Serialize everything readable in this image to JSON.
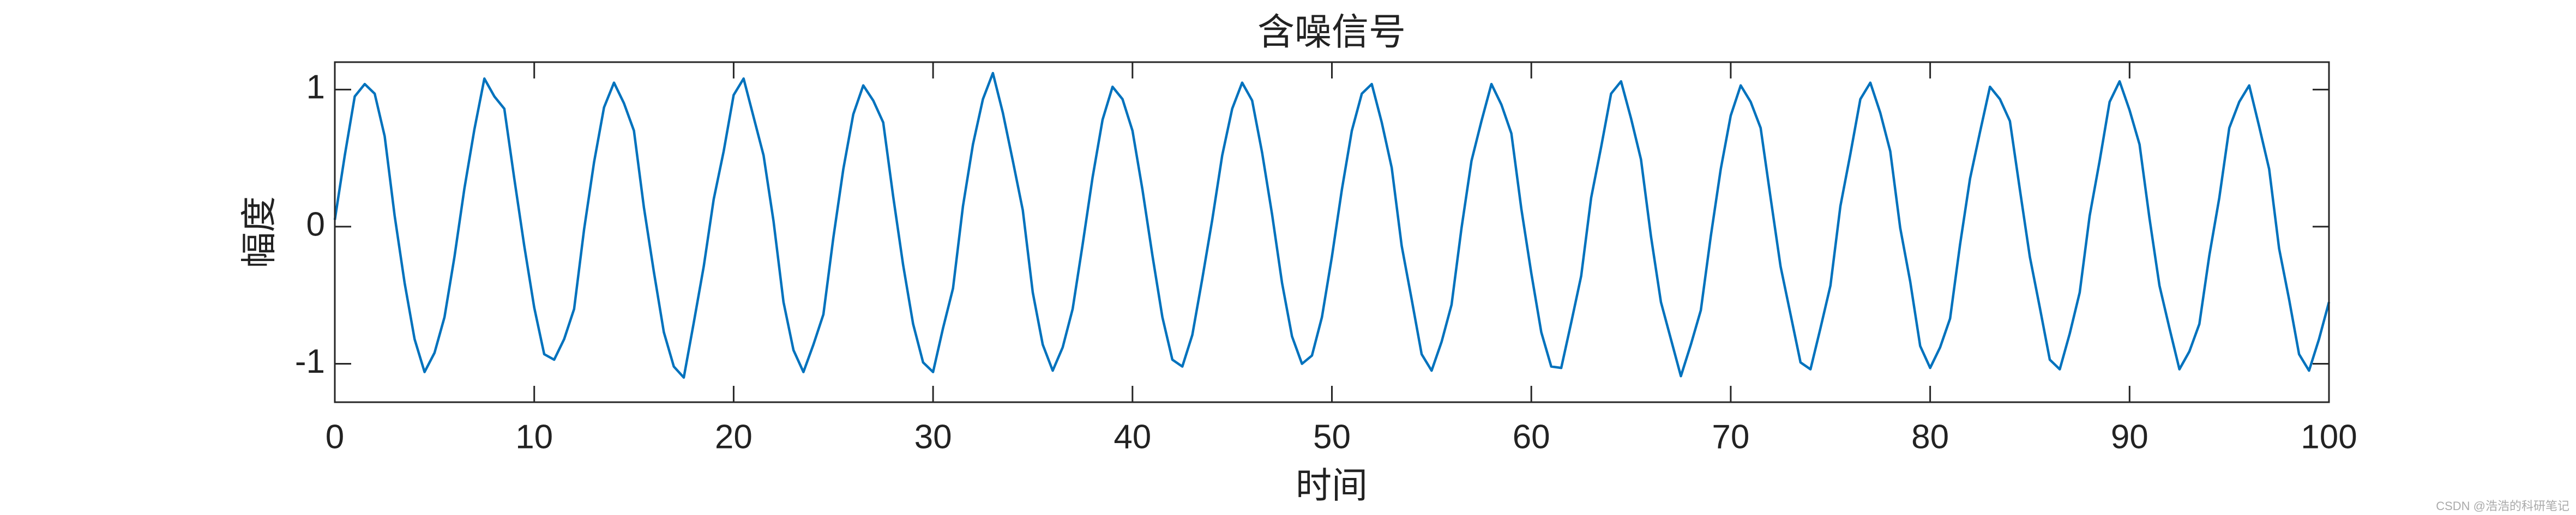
{
  "chart_data": {
    "type": "line",
    "title": "含噪信号",
    "xlabel": "时间",
    "ylabel": "幅度",
    "watermark": "CSDN @浩浩的科研笔记",
    "xlim": [
      0,
      100
    ],
    "ylim": [
      -1.28,
      1.2
    ],
    "xticks": [
      0,
      10,
      20,
      30,
      40,
      50,
      60,
      70,
      80,
      90,
      100
    ],
    "yticks": [
      -1,
      0,
      1
    ],
    "grid": false,
    "box": true,
    "x": [
      0,
      0.5,
      1,
      1.5,
      2,
      2.5,
      3,
      3.5,
      4,
      4.5,
      5,
      5.5,
      6,
      6.5,
      7,
      7.5,
      8,
      8.5,
      9,
      9.5,
      10,
      10.5,
      11,
      11.5,
      12,
      12.5,
      13,
      13.5,
      14,
      14.5,
      15,
      15.5,
      16,
      16.5,
      17,
      17.5,
      18,
      18.5,
      19,
      19.5,
      20,
      20.5,
      21,
      21.5,
      22,
      22.5,
      23,
      23.5,
      24,
      24.5,
      25,
      25.5,
      26,
      26.5,
      27,
      27.5,
      28,
      28.5,
      29,
      29.5,
      30,
      30.5,
      31,
      31.5,
      32,
      32.5,
      33,
      33.5,
      34,
      34.5,
      35,
      35.5,
      36,
      36.5,
      37,
      37.5,
      38,
      38.5,
      39,
      39.5,
      40,
      40.5,
      41,
      41.5,
      42,
      42.5,
      43,
      43.5,
      44,
      44.5,
      45,
      45.5,
      46,
      46.5,
      47,
      47.5,
      48,
      48.5,
      49,
      49.5,
      50,
      50.5,
      51,
      51.5,
      52,
      52.5,
      53,
      53.5,
      54,
      54.5,
      55,
      55.5,
      56,
      56.5,
      57,
      57.5,
      58,
      58.5,
      59,
      59.5,
      60,
      60.5,
      61,
      61.5,
      62,
      62.5,
      63,
      63.5,
      64,
      64.5,
      65,
      65.5,
      66,
      66.5,
      67,
      67.5,
      68,
      68.5,
      69,
      69.5,
      70,
      70.5,
      71,
      71.5,
      72,
      72.5,
      73,
      73.5,
      74,
      74.5,
      75,
      75.5,
      76,
      76.5,
      77,
      77.5,
      78,
      78.5,
      79,
      79.5,
      80,
      80.5,
      81,
      81.5,
      82,
      82.5,
      83,
      83.5,
      84,
      84.5,
      85,
      85.5,
      86,
      86.5,
      87,
      87.5,
      88,
      88.5,
      89,
      89.5,
      90,
      90.5,
      91,
      91.5,
      92,
      92.5,
      93,
      93.5,
      94,
      94.5,
      95,
      95.5,
      96,
      96.5,
      97,
      97.5,
      98,
      98.5,
      99,
      99.5,
      100
    ],
    "series": [
      {
        "color": "#0072BD",
        "values": [
          0.05,
          0.52,
          0.95,
          1.04,
          0.97,
          0.66,
          0.08,
          -0.41,
          -0.82,
          -1.06,
          -0.92,
          -0.66,
          -0.22,
          0.28,
          0.71,
          1.08,
          0.95,
          0.86,
          0.35,
          -0.14,
          -0.59,
          -0.93,
          -0.97,
          -0.82,
          -0.6,
          -0.02,
          0.47,
          0.87,
          1.05,
          0.9,
          0.7,
          0.14,
          -0.33,
          -0.77,
          -1.02,
          -1.1,
          -0.7,
          -0.29,
          0.2,
          0.55,
          0.96,
          1.08,
          0.8,
          0.52,
          0.04,
          -0.55,
          -0.9,
          -1.06,
          -0.86,
          -0.64,
          -0.08,
          0.42,
          0.82,
          1.03,
          0.92,
          0.76,
          0.22,
          -0.28,
          -0.71,
          -0.99,
          -1.06,
          -0.74,
          -0.45,
          0.15,
          0.6,
          0.93,
          1.12,
          0.83,
          0.48,
          0.12,
          -0.48,
          -0.86,
          -1.05,
          -0.88,
          -0.6,
          -0.13,
          0.36,
          0.78,
          1.02,
          0.93,
          0.7,
          0.27,
          -0.21,
          -0.66,
          -0.97,
          -1.02,
          -0.79,
          -0.38,
          0.05,
          0.52,
          0.86,
          1.05,
          0.92,
          0.54,
          0.09,
          -0.41,
          -0.8,
          -1.0,
          -0.94,
          -0.66,
          -0.22,
          0.27,
          0.7,
          0.97,
          1.04,
          0.76,
          0.43,
          -0.14,
          -0.53,
          -0.93,
          -1.05,
          -0.84,
          -0.57,
          -0.01,
          0.48,
          0.77,
          1.04,
          0.89,
          0.68,
          0.13,
          -0.34,
          -0.77,
          -1.02,
          -1.03,
          -0.7,
          -0.36,
          0.21,
          0.58,
          0.97,
          1.06,
          0.79,
          0.49,
          -0.07,
          -0.55,
          -0.82,
          -1.09,
          -0.86,
          -0.61,
          -0.07,
          0.42,
          0.81,
          1.03,
          0.91,
          0.72,
          0.21,
          -0.29,
          -0.64,
          -0.99,
          -1.04,
          -0.74,
          -0.43,
          0.15,
          0.53,
          0.93,
          1.05,
          0.83,
          0.55,
          -0.01,
          -0.4,
          -0.87,
          -1.03,
          -0.88,
          -0.67,
          -0.13,
          0.35,
          0.69,
          1.02,
          0.93,
          0.77,
          0.27,
          -0.22,
          -0.59,
          -0.97,
          -1.04,
          -0.78,
          -0.48,
          0.08,
          0.48,
          0.91,
          1.06,
          0.85,
          0.6,
          0.06,
          -0.43,
          -0.74,
          -1.04,
          -0.91,
          -0.71,
          -0.21,
          0.21,
          0.72,
          0.91,
          1.03,
          0.73,
          0.42,
          -0.16,
          -0.53,
          -0.93,
          -1.05,
          -0.82,
          -0.55
        ]
      }
    ]
  }
}
